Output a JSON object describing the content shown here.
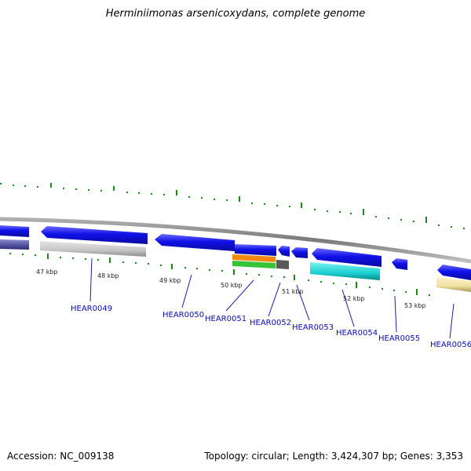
{
  "title": "Herminiimonas arsenicoxydans, complete genome",
  "footer": {
    "accession": "Accession: NC_009138",
    "summary": "Topology: circular; Length: 3,424,307 bp; Genes: 3,353"
  },
  "scale_labels": [
    "47 kbp",
    "48 kbp",
    "49 kbp",
    "50 kbp",
    "51 kbp",
    "52 kbp",
    "53 kbp"
  ],
  "gene_labels": [
    "HEAR0049",
    "HEAR0050",
    "HEAR0051",
    "HEAR0052",
    "HEAR0053",
    "HEAR0054",
    "HEAR0055",
    "HEAR0056"
  ],
  "colors": {
    "cds_forward": "#1010e8",
    "backbone": "#8a8a8a",
    "tick": "#1a8a1a",
    "label": "#0b0bb4",
    "feature_orange": "#f08a10",
    "feature_green": "#36c436",
    "feature_cyan": "#1ad0d0",
    "feature_gray": "#c4c4c4",
    "feature_darkgray": "#5a5a5a",
    "feature_purple": "#5a5aa8",
    "feature_yellow": "#f0e0a0"
  }
}
